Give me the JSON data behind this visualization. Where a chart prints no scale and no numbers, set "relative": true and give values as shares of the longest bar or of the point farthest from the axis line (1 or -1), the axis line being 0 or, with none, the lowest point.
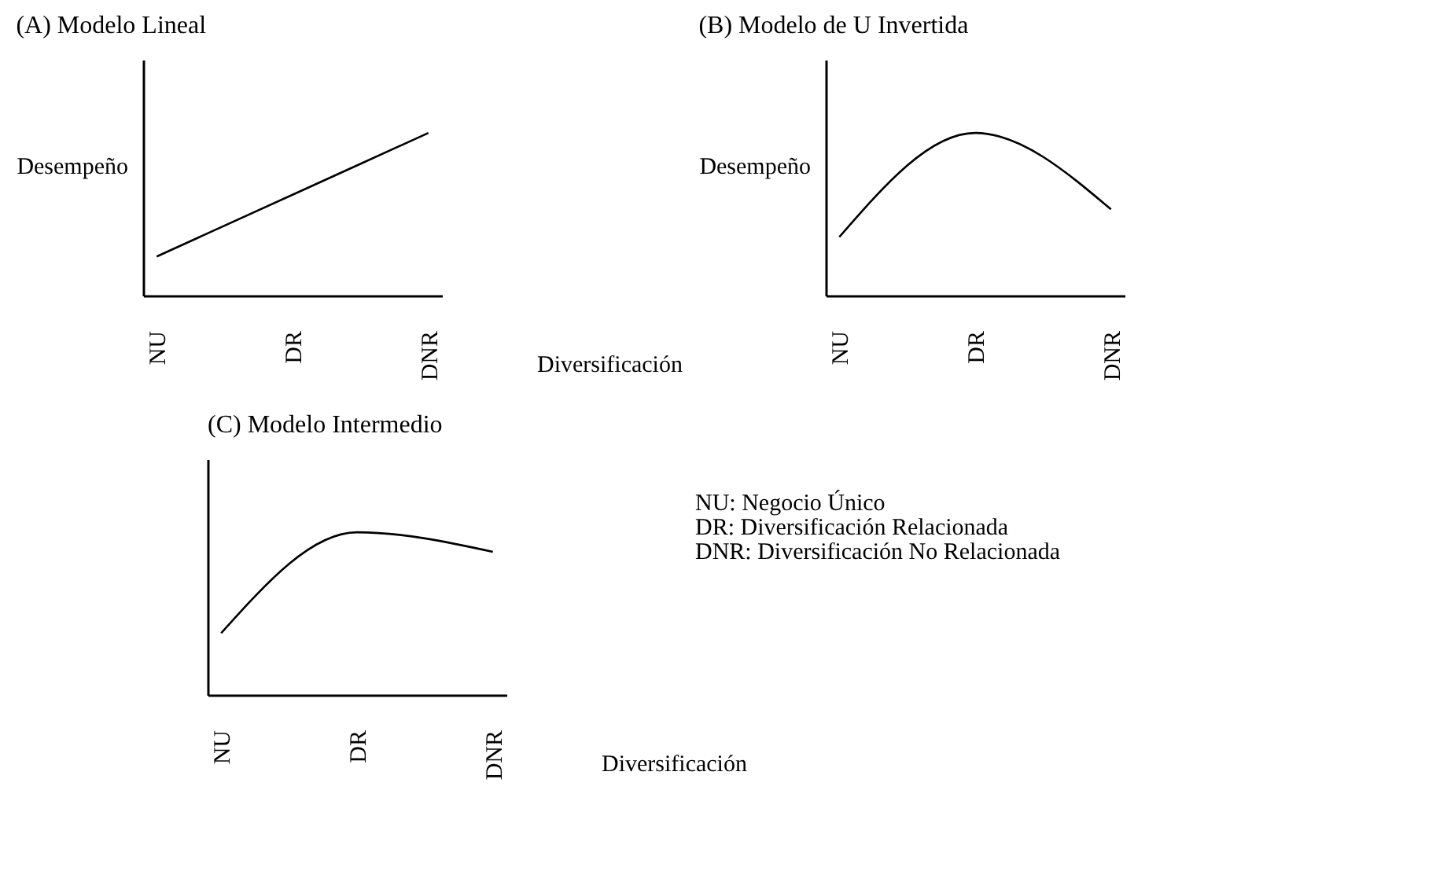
{
  "chart_data": [
    {
      "type": "line",
      "title": "(A) Modelo Lineal",
      "ylabel": "Desempeño",
      "xlabel": "Diversificación",
      "categories": [
        "NU",
        "DR",
        "DNR"
      ],
      "values": [
        0.24,
        0.62,
        1
      ],
      "relative": true,
      "tick_labels": "x"
    },
    {
      "type": "line",
      "title": "(B) Modelo de U Invertida",
      "ylabel": "Desempeño",
      "categories": [
        "NU",
        "DR",
        "DNR"
      ],
      "values": [
        0.36,
        1,
        0.53
      ],
      "relative": true,
      "tick_labels": "x"
    },
    {
      "type": "line",
      "title": "(C) Modelo Intermedio",
      "xlabel": "Diversificación",
      "categories": [
        "NU",
        "DR",
        "DNR"
      ],
      "values": [
        0.38,
        1,
        0.88
      ],
      "relative": true,
      "tick_labels": "x",
      "annotations": [
        "NU: Negocio Único",
        "DR: Diversificación Relacionada",
        "DNR: Diversificación No Relacionada"
      ]
    }
  ]
}
